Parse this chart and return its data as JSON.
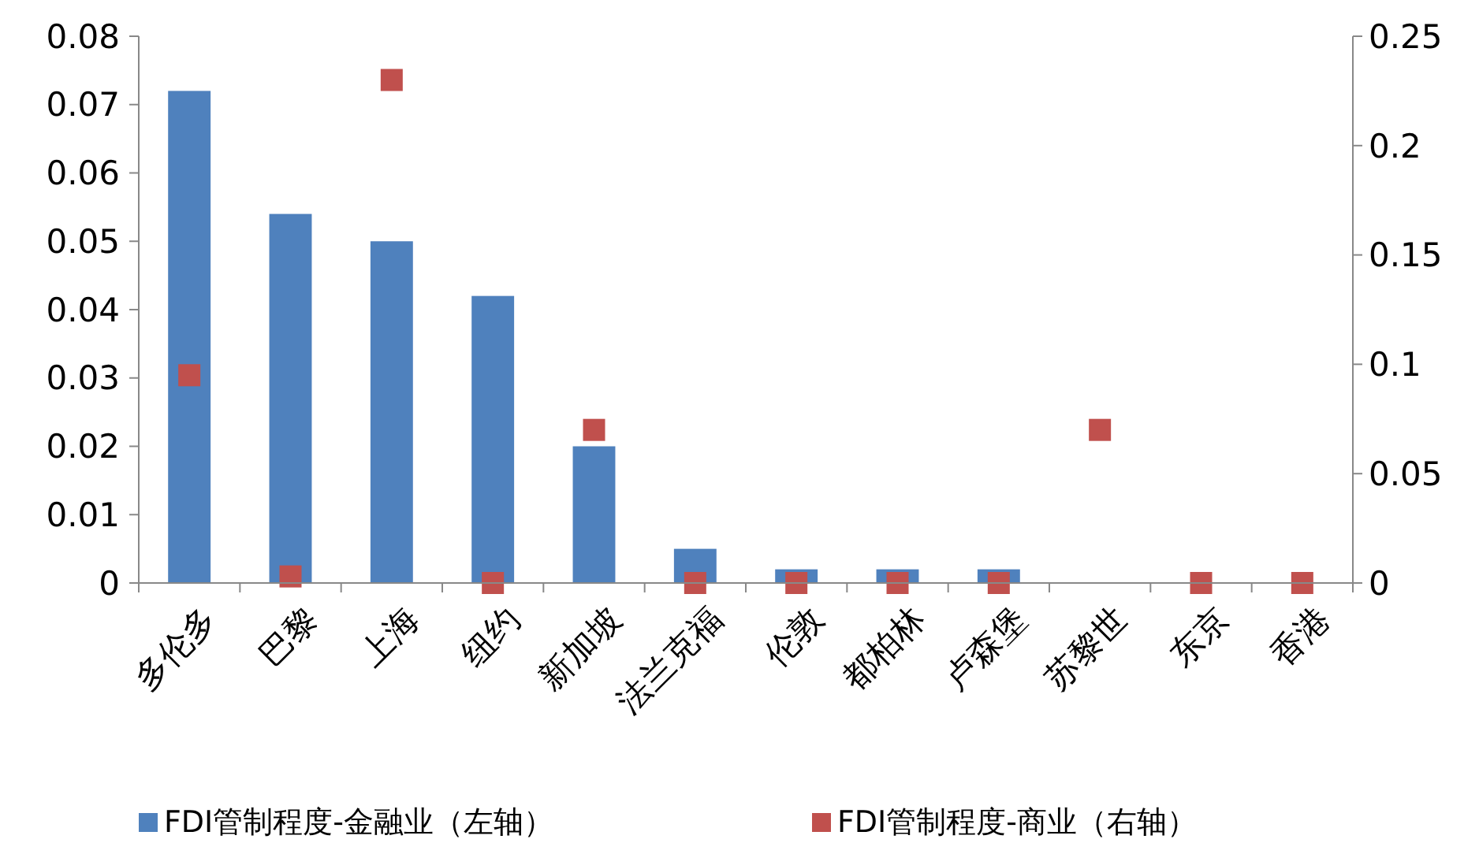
{
  "chart_data": {
    "type": "bar",
    "categories": [
      "多伦多",
      "巴黎",
      "上海",
      "纽约",
      "新加坡",
      "法兰克福",
      "伦敦",
      "都柏林",
      "卢森堡",
      "苏黎世",
      "东京",
      "香港"
    ],
    "series": [
      {
        "name": "FDI管制程度-金融业（左轴）",
        "color": "#4f81bd",
        "values": [
          0.072,
          0.054,
          0.05,
          0.042,
          0.02,
          0.005,
          0.002,
          0.002,
          0.002,
          0,
          0,
          0
        ]
      },
      {
        "name": "FDI管制程度-商业（右轴）",
        "type": "scatter",
        "axis": "y2",
        "marker": "square",
        "color": "#c0504d",
        "values": [
          0.095,
          0.003,
          0.23,
          0,
          0.07,
          0,
          0,
          0,
          0,
          0.07,
          0,
          0
        ]
      }
    ],
    "ylim": [
      0,
      0.08
    ],
    "yticks": [
      0,
      0.01,
      0.02,
      0.03,
      0.04,
      0.05,
      0.06,
      0.07,
      0.08
    ],
    "y2lim": [
      0,
      0.25
    ],
    "y2ticks": [
      0,
      0.05,
      0.1,
      0.15,
      0.2,
      0.25
    ],
    "grid": false,
    "legend": "bottom"
  }
}
